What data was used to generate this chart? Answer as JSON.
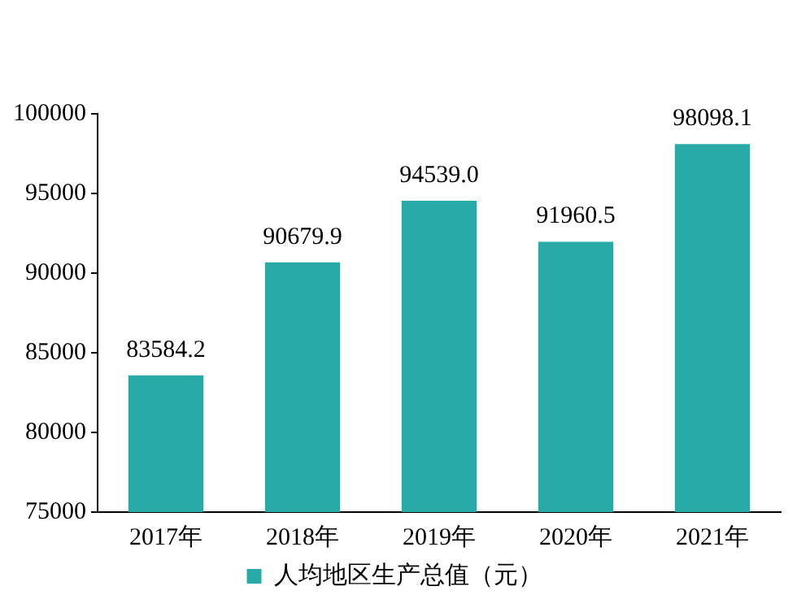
{
  "chart_data": {
    "type": "bar",
    "categories": [
      "2017年",
      "2018年",
      "2019年",
      "2020年",
      "2021年"
    ],
    "series": [
      {
        "name": "人均地区生产总值（元）",
        "color": "#2aa9a9",
        "values": [
          83584.2,
          90679.9,
          94539.0,
          91960.5,
          98098.1
        ],
        "value_labels": [
          "83584.2",
          "90679.9",
          "94539.0",
          "91960.5",
          "98098.1"
        ]
      }
    ],
    "ylim": [
      75000,
      100000
    ],
    "yticks": [
      75000,
      80000,
      85000,
      90000,
      95000,
      100000
    ],
    "grid": false,
    "legend": "bottom"
  }
}
